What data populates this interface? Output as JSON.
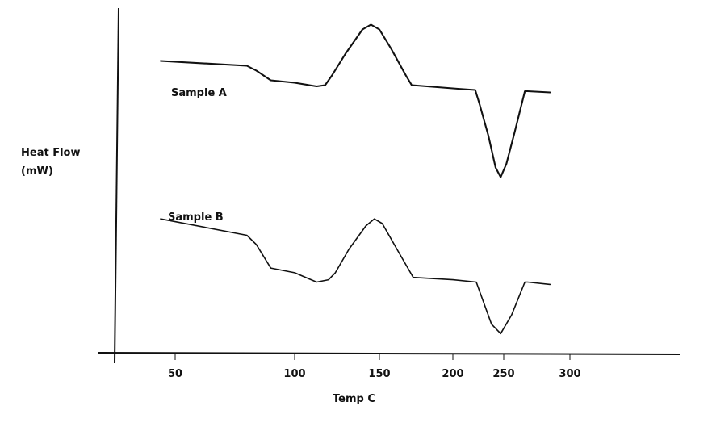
{
  "chart_data": {
    "type": "line",
    "xlabel": "Temp C",
    "ylabel": [
      "Heat Flow",
      "(mW)"
    ],
    "x_ticks": [
      50,
      100,
      150,
      200,
      250,
      300
    ],
    "grid": false,
    "series": [
      {
        "name": "Sample A",
        "points": [
          [
            40,
            0.7
          ],
          [
            80,
            0.66
          ],
          [
            84,
            0.62
          ],
          [
            90,
            0.54
          ],
          [
            100,
            0.52
          ],
          [
            113,
            0.49
          ],
          [
            118,
            0.5
          ],
          [
            122,
            0.58
          ],
          [
            130,
            0.76
          ],
          [
            140,
            0.96
          ],
          [
            145,
            1.0
          ],
          [
            150,
            0.96
          ],
          [
            158,
            0.8
          ],
          [
            168,
            0.58
          ],
          [
            172,
            0.5
          ],
          [
            205,
            0.47
          ],
          [
            222,
            0.46
          ],
          [
            226,
            0.35
          ],
          [
            235,
            0.08
          ],
          [
            242,
            -0.18
          ],
          [
            247,
            -0.26
          ],
          [
            252,
            -0.15
          ],
          [
            258,
            0.1
          ],
          [
            266,
            0.45
          ],
          [
            268,
            0.45
          ],
          [
            285,
            0.44
          ]
        ]
      },
      {
        "name": "Sample B",
        "points": [
          [
            40,
            0.27
          ],
          [
            80,
            0.2
          ],
          [
            84,
            0.16
          ],
          [
            90,
            0.06
          ],
          [
            100,
            0.04
          ],
          [
            113,
            0.0
          ],
          [
            120,
            0.01
          ],
          [
            124,
            0.04
          ],
          [
            132,
            0.14
          ],
          [
            142,
            0.24
          ],
          [
            147,
            0.27
          ],
          [
            152,
            0.25
          ],
          [
            162,
            0.14
          ],
          [
            173,
            0.02
          ],
          [
            200,
            0.01
          ],
          [
            223,
            0.0
          ],
          [
            228,
            -0.06
          ],
          [
            238,
            -0.18
          ],
          [
            247,
            -0.22
          ],
          [
            256,
            -0.14
          ],
          [
            266,
            0.0
          ],
          [
            268,
            0.0
          ],
          [
            285,
            -0.01
          ]
        ]
      }
    ]
  }
}
